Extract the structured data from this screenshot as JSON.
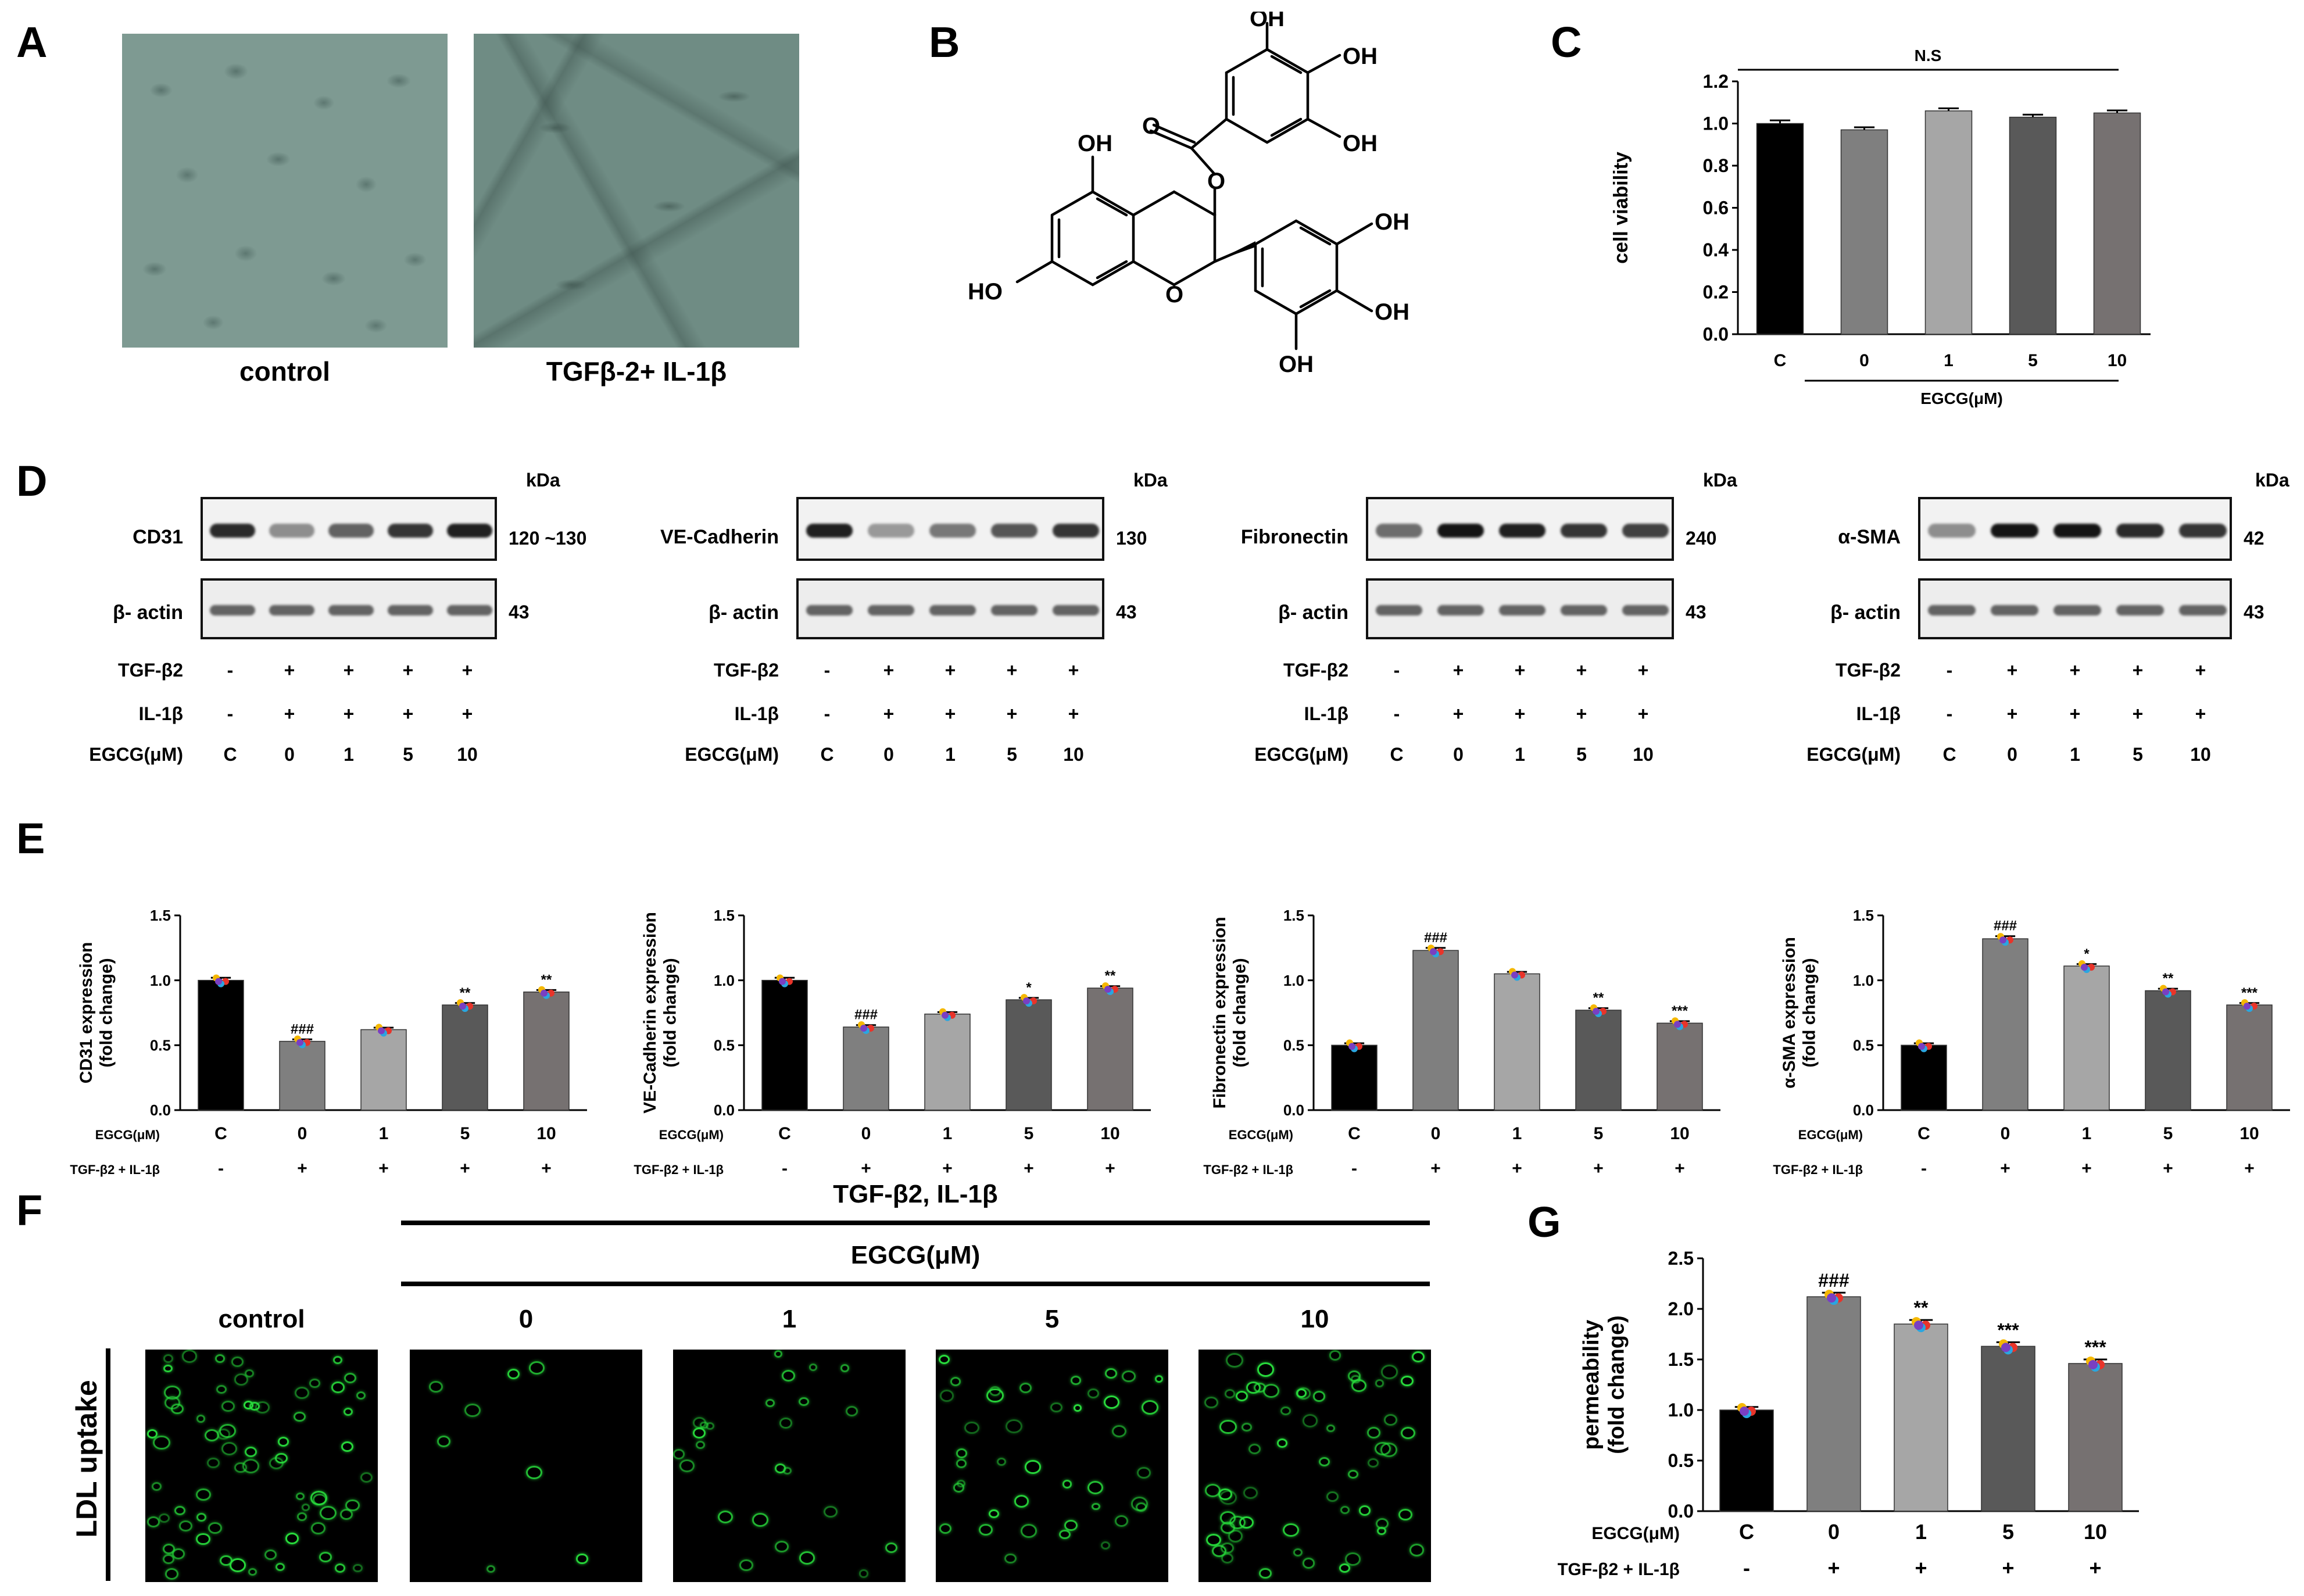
{
  "panels": {
    "A": {
      "label": "A",
      "captions": [
        "control",
        "TGFβ-2+ IL-1β"
      ]
    },
    "B": {
      "label": "B",
      "atoms": [
        "OH",
        "OH",
        "OH",
        "O",
        "OH",
        "O",
        "HO",
        "O",
        "OH",
        "OH",
        "OH"
      ]
    },
    "D": {
      "label": "D",
      "kda": "kDa",
      "blots": [
        {
          "target": "CD31",
          "target_size": "120 ~130",
          "loading": "β- actin",
          "loading_size": "43"
        },
        {
          "target": "VE-Cadherin",
          "target_size": "130",
          "loading": "β- actin",
          "loading_size": "43"
        },
        {
          "target": "Fibronectin",
          "target_size": "240",
          "loading": "β- actin",
          "loading_size": "43"
        },
        {
          "target": "α-SMA",
          "target_size": "42",
          "loading": "β- actin",
          "loading_size": "43"
        }
      ],
      "conditions": [
        {
          "label": "TGF-β2",
          "values": [
            "-",
            "+",
            "+",
            "+",
            "+"
          ]
        },
        {
          "label": "IL-1β",
          "values": [
            "-",
            "+",
            "+",
            "+",
            "+"
          ]
        },
        {
          "label": "EGCG(μM)",
          "values": [
            "C",
            "0",
            "1",
            "5",
            "10"
          ]
        }
      ]
    },
    "F": {
      "label": "F",
      "treatment": "TGF-β2, IL-1β",
      "egcg": "EGCG(μM)",
      "columns": [
        "control",
        "0",
        "1",
        "5",
        "10"
      ],
      "row_label": "LDL uptake"
    }
  },
  "colors": {
    "bar_C": "#000000",
    "bar_0": "#7f7f7f",
    "bar_1": "#a6a6a6",
    "bar_5": "#595959",
    "bar_10": "#767171",
    "fluor_green": "#22c832"
  },
  "chart_data": [
    {
      "id": "C",
      "panel_label": "C",
      "type": "bar",
      "categories": [
        "C",
        "0",
        "1",
        "5",
        "10"
      ],
      "values": [
        1.0,
        0.97,
        1.06,
        1.03,
        1.05
      ],
      "errors": [
        0.015,
        0.012,
        0.012,
        0.012,
        0.012
      ],
      "ylabel": "cell viability",
      "group_label": "EGCG(μM)",
      "annotation": "N.S",
      "ylim": [
        0,
        1.2
      ],
      "yticks": [
        "0.0",
        "0.2",
        "0.4",
        "0.6",
        "0.8",
        "1.0",
        "1.2"
      ],
      "sig": [
        "",
        "",
        "",
        "",
        ""
      ]
    },
    {
      "id": "E1",
      "panel_label": "E",
      "type": "bar",
      "categories": [
        "C",
        "0",
        "1",
        "5",
        "10"
      ],
      "values": [
        1.0,
        0.53,
        0.62,
        0.81,
        0.91
      ],
      "errors": [
        0.02,
        0.015,
        0.015,
        0.015,
        0.015
      ],
      "ylabel_lines": [
        "CD31 expression",
        "(fold change)"
      ],
      "row1_label": "EGCG(μM)",
      "row2_label": "TGF-β2 + IL-1β",
      "row2_values": [
        "-",
        "+",
        "+",
        "+",
        "+"
      ],
      "ylim": [
        0,
        1.5
      ],
      "yticks": [
        "0.0",
        "0.5",
        "1.0",
        "1.5"
      ],
      "sig": [
        "",
        "###",
        "",
        "**",
        "**"
      ]
    },
    {
      "id": "E2",
      "type": "bar",
      "categories": [
        "C",
        "0",
        "1",
        "5",
        "10"
      ],
      "values": [
        1.0,
        0.64,
        0.74,
        0.85,
        0.94
      ],
      "errors": [
        0.02,
        0.015,
        0.015,
        0.015,
        0.015
      ],
      "ylabel_lines": [
        "VE-Cadherin expression",
        "(fold change)"
      ],
      "row1_label": "EGCG(μM)",
      "row2_label": "TGF-β2 + IL-1β",
      "row2_values": [
        "-",
        "+",
        "+",
        "+",
        "+"
      ],
      "ylim": [
        0,
        1.5
      ],
      "yticks": [
        "0.0",
        "0.5",
        "1.0",
        "1.5"
      ],
      "sig": [
        "",
        "###",
        "",
        "*",
        "**"
      ]
    },
    {
      "id": "E3",
      "type": "bar",
      "categories": [
        "C",
        "0",
        "1",
        "5",
        "10"
      ],
      "values": [
        0.5,
        1.23,
        1.05,
        0.77,
        0.67
      ],
      "errors": [
        0.015,
        0.02,
        0.015,
        0.015,
        0.015
      ],
      "ylabel_lines": [
        "Fibronectin expression",
        "(fold change)"
      ],
      "row1_label": "EGCG(μM)",
      "row2_label": "TGF-β2 + IL-1β",
      "row2_values": [
        "-",
        "+",
        "+",
        "+",
        "+"
      ],
      "ylim": [
        0,
        1.5
      ],
      "yticks": [
        "0.0",
        "0.5",
        "1.0",
        "1.5"
      ],
      "sig": [
        "",
        "###",
        "",
        "**",
        "***"
      ]
    },
    {
      "id": "E4",
      "type": "bar",
      "categories": [
        "C",
        "0",
        "1",
        "5",
        "10"
      ],
      "values": [
        0.5,
        1.32,
        1.11,
        0.92,
        0.81
      ],
      "errors": [
        0.015,
        0.02,
        0.015,
        0.015,
        0.015
      ],
      "ylabel_lines": [
        "α-SMA expression",
        "(fold change)"
      ],
      "row1_label": "EGCG(μM)",
      "row2_label": "TGF-β2 + IL-1β",
      "row2_values": [
        "-",
        "+",
        "+",
        "+",
        "+"
      ],
      "ylim": [
        0,
        1.5
      ],
      "yticks": [
        "0.0",
        "0.5",
        "1.0",
        "1.5"
      ],
      "sig": [
        "",
        "###",
        "*",
        "**",
        "***"
      ]
    },
    {
      "id": "G",
      "panel_label": "G",
      "type": "bar",
      "categories": [
        "C",
        "0",
        "1",
        "5",
        "10"
      ],
      "values": [
        1.0,
        2.12,
        1.85,
        1.63,
        1.46
      ],
      "errors": [
        0.03,
        0.04,
        0.04,
        0.04,
        0.04
      ],
      "ylabel_lines": [
        "permeability",
        "(fold change)"
      ],
      "row1_label": "EGCG(μM)",
      "row2_label": "TGF-β2 + IL-1β",
      "row2_values": [
        "-",
        "+",
        "+",
        "+",
        "+"
      ],
      "ylim": [
        0,
        2.5
      ],
      "yticks": [
        "0.0",
        "0.5",
        "1.0",
        "1.5",
        "2.0",
        "2.5"
      ],
      "sig": [
        "",
        "###",
        "**",
        "***",
        "***"
      ]
    }
  ]
}
